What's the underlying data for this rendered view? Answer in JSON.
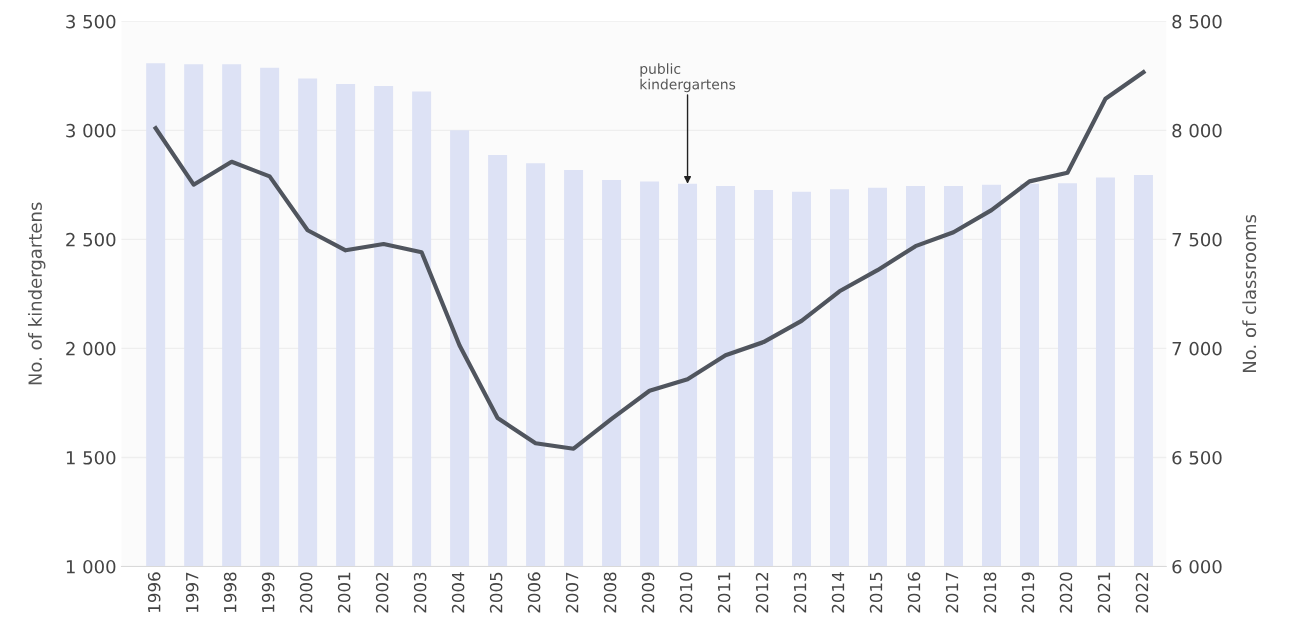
{
  "chart_data": {
    "type": "bar",
    "categories": [
      "1996",
      "1997",
      "1998",
      "1999",
      "2000",
      "2001",
      "2002",
      "2003",
      "2004",
      "2005",
      "2006",
      "2007",
      "2008",
      "2009",
      "2010",
      "2011",
      "2012",
      "2013",
      "2014",
      "2015",
      "2016",
      "2017",
      "2018",
      "2019",
      "2020",
      "2021",
      "2022"
    ],
    "series": [
      {
        "color": "#dde2f5",
        "values": [
          3308,
          3303,
          3303,
          3287,
          3238,
          3213,
          3203,
          3178,
          3000,
          2887,
          2849,
          2818,
          2772,
          2765,
          2755,
          2745,
          2726,
          2718,
          2730,
          2737,
          2745,
          2745,
          2751,
          2755,
          2757,
          2784,
          2795
        ]
      },
      {
        "type": "line",
        "axis": "y2",
        "color": "#50555e",
        "values": [
          8010,
          7751,
          7856,
          7789,
          7542,
          7450,
          7479,
          7441,
          7013,
          6681,
          6565,
          6540,
          6677,
          6806,
          6859,
          6969,
          7029,
          7126,
          7262,
          7359,
          7469,
          7533,
          7634,
          7766,
          7806,
          8145,
          8267
        ]
      }
    ],
    "ylabel": "No. of kindergartens",
    "y2label": "No. of classrooms",
    "ylim": [
      1000,
      3500
    ],
    "yticks": [
      {
        "value": 1000,
        "label": "1 000"
      },
      {
        "value": 1500,
        "label": "1 500"
      },
      {
        "value": 2000,
        "label": "2 000"
      },
      {
        "value": 2500,
        "label": "2 500"
      },
      {
        "value": 3000,
        "label": "3 000"
      },
      {
        "value": 3500,
        "label": "3 500"
      }
    ],
    "y2lim": [
      6000,
      8500
    ],
    "y2ticks": [
      {
        "value": 6000,
        "label": "6 000"
      },
      {
        "value": 6500,
        "label": "6 500"
      },
      {
        "value": 7000,
        "label": "7 000"
      },
      {
        "value": 7500,
        "label": "7 500"
      },
      {
        "value": 8000,
        "label": "8 000"
      },
      {
        "value": 8500,
        "label": "8 500"
      }
    ],
    "annotations": [
      {
        "text": "public\nkindergartens",
        "x": "2010",
        "y": 2755
      }
    ],
    "grid": "y",
    "marker": "none",
    "line_style": "solid"
  }
}
